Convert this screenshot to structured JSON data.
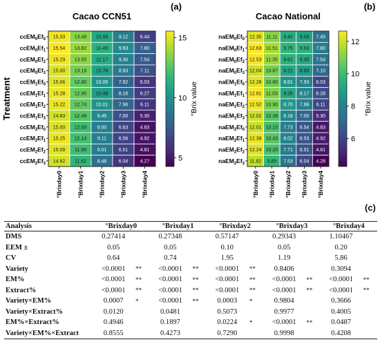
{
  "chart_data": [
    {
      "type": "heatmap",
      "panel": "(a)",
      "title": "Cacao CCN51",
      "ylabel": "Treatment",
      "colorbar_label": "°Brix value",
      "colorbar_ticks": [
        "15",
        "10",
        "5"
      ],
      "colorbar_range": [
        4.27,
        15.54
      ],
      "colormap": "viridis",
      "rows": [
        "ccEM0Ef0",
        "ccEM0Ef1",
        "ccEM0Ef2",
        "ccEM0Ef3",
        "ccEM1Ef0",
        "ccEM1Ef1",
        "ccEM1Ef2",
        "ccEM1Ef3",
        "ccEM2Ef0",
        "ccEM2Ef1",
        "ccEM2Ef2",
        "ccEM2Ef3"
      ],
      "row_labels": [
        {
          "base": "ccEM",
          "s1": "0",
          "mid": "Ef",
          "s2": "0"
        },
        {
          "base": "ccEM",
          "s1": "0",
          "mid": "Ef",
          "s2": "1"
        },
        {
          "base": "ccEM",
          "s1": "0",
          "mid": "Ef",
          "s2": "2"
        },
        {
          "base": "ccEM",
          "s1": "0",
          "mid": "Ef",
          "s2": "3"
        },
        {
          "base": "ccEM",
          "s1": "1",
          "mid": "Ef",
          "s2": "0"
        },
        {
          "base": "ccEM",
          "s1": "1",
          "mid": "Ef",
          "s2": "1"
        },
        {
          "base": "ccEM",
          "s1": "1",
          "mid": "Ef",
          "s2": "2"
        },
        {
          "base": "ccEM",
          "s1": "1",
          "mid": "Ef",
          "s2": "3"
        },
        {
          "base": "ccEM",
          "s1": "2",
          "mid": "Ef",
          "s2": "0"
        },
        {
          "base": "ccEM",
          "s1": "2",
          "mid": "Ef",
          "s2": "1"
        },
        {
          "base": "ccEM",
          "s1": "2",
          "mid": "Ef",
          "s2": "2"
        },
        {
          "base": "ccEM",
          "s1": "2",
          "mid": "Ef",
          "s2": "3"
        }
      ],
      "columns": [
        "°Brixday0",
        "°Brixday1",
        "°Brixday2",
        "°Brixday3",
        "°Brixday4"
      ],
      "values": [
        [
          15.33,
          13.49,
          10.99,
          9.12,
          6.44
        ],
        [
          15.54,
          13.82,
          11.49,
          9.63,
          7.8
        ],
        [
          15.29,
          13.55,
          11.17,
          9.3,
          7.54
        ],
        [
          15.0,
          13.19,
          10.76,
          8.93,
          7.11
        ],
        [
          15.06,
          12.8,
          10.05,
          7.92,
          6.03
        ],
        [
          15.28,
          12.9,
          10.48,
          8.16,
          6.27
        ],
        [
          15.22,
          12.74,
          10.01,
          7.96,
          6.11
        ],
        [
          14.83,
          12.49,
          9.45,
          7.0,
          5.3
        ],
        [
          15.0,
          12.0,
          9.0,
          6.63,
          4.83
        ],
        [
          15.25,
          12.14,
          9.11,
          6.56,
          4.92
        ],
        [
          15.09,
          11.99,
          9.01,
          6.51,
          4.81
        ],
        [
          14.82,
          11.62,
          8.48,
          6.04,
          4.27
        ]
      ]
    },
    {
      "type": "heatmap",
      "panel": "(b)",
      "title": "Cacao National",
      "colorbar_label": "°Brix value",
      "colorbar_ticks": [
        "12",
        "10",
        "8",
        "6"
      ],
      "colorbar_range": [
        4.28,
        12.63
      ],
      "colormap": "viridis",
      "rows": [
        "naEM0Ef0",
        "naEM0Ef1",
        "naEM0Ef2",
        "naEM0Ef3",
        "naEM1Ef0",
        "naEM1Ef1",
        "naEM1Ef2",
        "naEM1Ef3",
        "naEM2Ef0",
        "naEM2Ef1",
        "naEM2Ef2",
        "naEM2Ef3"
      ],
      "row_labels": [
        {
          "base": "naEM",
          "s1": "0",
          "mid": "Ef",
          "s2": "0"
        },
        {
          "base": "naEM",
          "s1": "0",
          "mid": "Ef",
          "s2": "1"
        },
        {
          "base": "naEM",
          "s1": "0",
          "mid": "Ef",
          "s2": "2"
        },
        {
          "base": "naEM",
          "s1": "0",
          "mid": "Ef",
          "s2": "3"
        },
        {
          "base": "naEM",
          "s1": "1",
          "mid": "Ef",
          "s2": "0"
        },
        {
          "base": "naEM",
          "s1": "1",
          "mid": "Ef",
          "s2": "1"
        },
        {
          "base": "naEM",
          "s1": "1",
          "mid": "Ef",
          "s2": "2"
        },
        {
          "base": "naEM",
          "s1": "1",
          "mid": "Ef",
          "s2": "3"
        },
        {
          "base": "naEM",
          "s1": "2",
          "mid": "Ef",
          "s2": "0"
        },
        {
          "base": "naEM",
          "s1": "2",
          "mid": "Ef",
          "s2": "1"
        },
        {
          "base": "naEM",
          "s1": "2",
          "mid": "Ef",
          "s2": "2"
        },
        {
          "base": "naEM",
          "s1": "2",
          "mid": "Ef",
          "s2": "3"
        }
      ],
      "columns": [
        "°Brixday0",
        "°Brixday1",
        "°Brixday2",
        "°Brixday3",
        "°Brixday4"
      ],
      "values": [
        [
          12.3,
          11.11,
          9.4,
          9.09,
          7.45
        ],
        [
          12.63,
          11.51,
          9.75,
          9.63,
          7.8
        ],
        [
          12.53,
          11.35,
          9.61,
          9.3,
          7.54
        ],
        [
          12.04,
          10.87,
          9.21,
          8.93,
          7.1
        ],
        [
          12.28,
          10.8,
          8.61,
          7.93,
          6.03
        ],
        [
          12.61,
          11.03,
          9.26,
          8.17,
          6.28
        ],
        [
          12.52,
          10.9,
          8.7,
          7.96,
          6.11
        ],
        [
          12.02,
          10.38,
          8.16,
          7.0,
          5.3
        ],
        [
          12.01,
          10.15,
          7.73,
          6.54,
          4.83
        ],
        [
          12.39,
          10.43,
          8.02,
          6.53,
          4.92
        ],
        [
          12.24,
          10.2,
          7.71,
          6.51,
          4.81
        ],
        [
          11.82,
          9.85,
          7.53,
          6.04,
          4.28
        ]
      ]
    },
    {
      "type": "table",
      "panel": "(c)",
      "headers": [
        "Analysis",
        "°Brixday0",
        "°Brixday1",
        "°Brixday2",
        "°Brixday3",
        "°Brixday4"
      ],
      "rows": [
        {
          "label": "DMS",
          "cells": [
            [
              "0.27414",
              ""
            ],
            [
              "0.27348",
              ""
            ],
            [
              "0.57147",
              ""
            ],
            [
              "0.29343",
              ""
            ],
            [
              "1.10467",
              ""
            ]
          ]
        },
        {
          "label": "EEM ±",
          "cells": [
            [
              "0.05",
              ""
            ],
            [
              "0.05",
              ""
            ],
            [
              "0.10",
              ""
            ],
            [
              "0.05",
              ""
            ],
            [
              "0.20",
              ""
            ]
          ]
        },
        {
          "label": "CV",
          "cells": [
            [
              "0.64",
              ""
            ],
            [
              "0.74",
              ""
            ],
            [
              "1.95",
              ""
            ],
            [
              "1.19",
              ""
            ],
            [
              "5.86",
              ""
            ]
          ]
        },
        {
          "label": "Variety",
          "cells": [
            [
              "<0.0001",
              "**"
            ],
            [
              "<0.0001",
              "**"
            ],
            [
              "<0.0001",
              "**"
            ],
            [
              "0.8406",
              ""
            ],
            [
              "0.3094",
              ""
            ]
          ]
        },
        {
          "label": "EM%",
          "cells": [
            [
              "<0.0001",
              "**"
            ],
            [
              "<0.0001",
              "**"
            ],
            [
              "<0.0001",
              "**"
            ],
            [
              "<0.0001",
              "**"
            ],
            [
              "<0.0001",
              "**"
            ]
          ]
        },
        {
          "label": "Extract%",
          "cells": [
            [
              "<0.0001",
              "**"
            ],
            [
              "<0.0001",
              "**"
            ],
            [
              "<0.0001",
              "**"
            ],
            [
              "<0.0001",
              "**"
            ],
            [
              "<0.0001",
              "**"
            ]
          ]
        },
        {
          "label": "Variety×EM%",
          "cells": [
            [
              "0.0007",
              "*"
            ],
            [
              "<0.0001",
              "**"
            ],
            [
              "0.0003",
              "*"
            ],
            [
              "0.9804",
              ""
            ],
            [
              "0.3666",
              ""
            ]
          ]
        },
        {
          "label": "Variety×Extract%",
          "cells": [
            [
              "0.0120",
              ""
            ],
            [
              "0.0481",
              ""
            ],
            [
              "0.5073",
              ""
            ],
            [
              "0.9977",
              ""
            ],
            [
              "0.4005",
              ""
            ]
          ]
        },
        {
          "label": "EM%×Extract%",
          "cells": [
            [
              "0.4946",
              ""
            ],
            [
              "0.1897",
              ""
            ],
            [
              "0.0224",
              "*"
            ],
            [
              "<0.0001",
              "**"
            ],
            [
              "0.0487",
              ""
            ]
          ]
        },
        {
          "label": "Variety×EM%×Extract",
          "cells": [
            [
              "0.8555",
              ""
            ],
            [
              "0.4273",
              ""
            ],
            [
              "0.7290",
              ""
            ],
            [
              "0.9998",
              ""
            ],
            [
              "0.4208",
              ""
            ]
          ]
        }
      ]
    }
  ]
}
